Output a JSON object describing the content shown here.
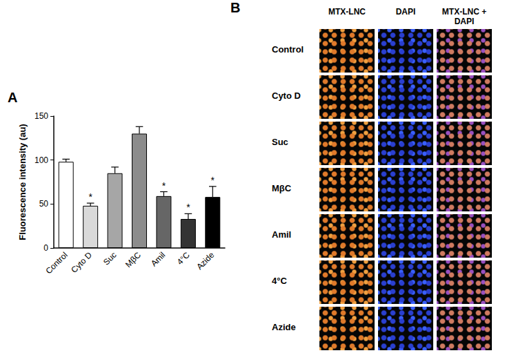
{
  "chart_data": {
    "type": "bar",
    "title": "A",
    "categories": [
      "Control",
      "Cyto D",
      "Suc",
      "MβC",
      "Amil",
      "4°C",
      "Azide"
    ],
    "values": [
      98,
      48,
      85,
      130,
      59,
      33,
      58
    ],
    "errors": [
      3,
      3,
      7,
      8,
      5,
      6,
      12
    ],
    "colors": [
      "#ffffff",
      "#d9d9d9",
      "#a6a6a6",
      "#8c8c8c",
      "#666666",
      "#333333",
      "#000000"
    ],
    "y_label": "Fluorescence intensity (au)",
    "ylim": [
      0,
      150
    ],
    "yticks": [
      0,
      50,
      100,
      150
    ],
    "grid": false,
    "annotations": [
      {
        "category": "Cyto D",
        "text": "*"
      },
      {
        "category": "Amil",
        "text": "*"
      },
      {
        "category": "4°C",
        "text": "*"
      },
      {
        "category": "Azide",
        "text": "*"
      }
    ]
  },
  "panel_b": {
    "label": "B",
    "columns": [
      "MTX-LNC",
      "DAPI",
      "MTX-LNC + DAPI"
    ],
    "rows": [
      "Control",
      "Cyto D",
      "Suc",
      "MβC",
      "Amil",
      "4°C",
      "Azide"
    ]
  }
}
